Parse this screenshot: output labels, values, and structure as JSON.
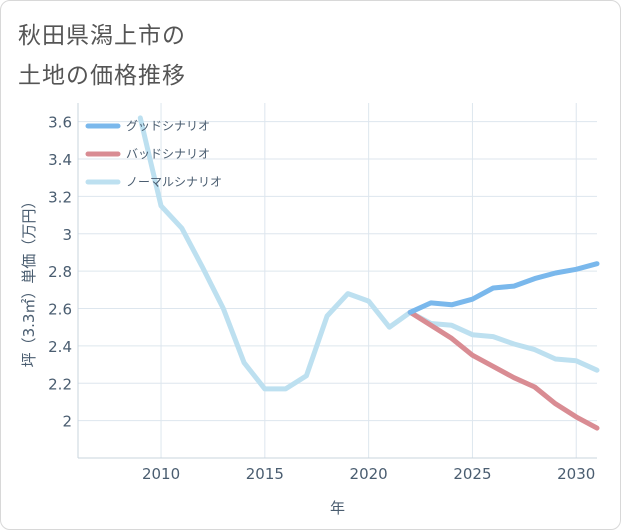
{
  "header": {
    "title_line1": "秋田県潟上市の",
    "title_line2": "土地の価格推移"
  },
  "chart_data": {
    "type": "line",
    "xlabel": "年",
    "ylabel": "坪（3.3㎡）単価（万円）",
    "xlim": [
      2006,
      2031
    ],
    "ylim": [
      1.8,
      3.7
    ],
    "xticks": [
      2010,
      2015,
      2020,
      2025,
      2030
    ],
    "yticks": [
      2,
      2.2,
      2.4,
      2.6,
      2.8,
      3,
      3.2,
      3.4,
      3.6
    ],
    "grid": true,
    "legend_position": "top-left",
    "series": [
      {
        "name": "グッドシナリオ",
        "color": "#7ab8ec",
        "x": [
          2022,
          2023,
          2024,
          2025,
          2026,
          2027,
          2028,
          2029,
          2030,
          2031
        ],
        "y": [
          2.58,
          2.63,
          2.62,
          2.65,
          2.71,
          2.72,
          2.76,
          2.79,
          2.81,
          2.84
        ]
      },
      {
        "name": "バッドシナリオ",
        "color": "#d98c93",
        "x": [
          2022,
          2023,
          2024,
          2025,
          2026,
          2027,
          2028,
          2029,
          2030,
          2031
        ],
        "y": [
          2.58,
          2.51,
          2.44,
          2.35,
          2.29,
          2.23,
          2.18,
          2.09,
          2.02,
          1.96
        ]
      },
      {
        "name": "ノーマルシナリオ",
        "color": "#bde0f0",
        "x": [
          2009,
          2010,
          2011,
          2012,
          2013,
          2014,
          2015,
          2016,
          2017,
          2018,
          2019,
          2020,
          2021,
          2022,
          2023,
          2024,
          2025,
          2026,
          2027,
          2028,
          2029,
          2030,
          2031
        ],
        "y": [
          3.62,
          3.15,
          3.03,
          2.82,
          2.6,
          2.31,
          2.17,
          2.17,
          2.24,
          2.56,
          2.68,
          2.64,
          2.5,
          2.58,
          2.52,
          2.51,
          2.46,
          2.45,
          2.41,
          2.38,
          2.33,
          2.32,
          2.27
        ]
      }
    ]
  }
}
